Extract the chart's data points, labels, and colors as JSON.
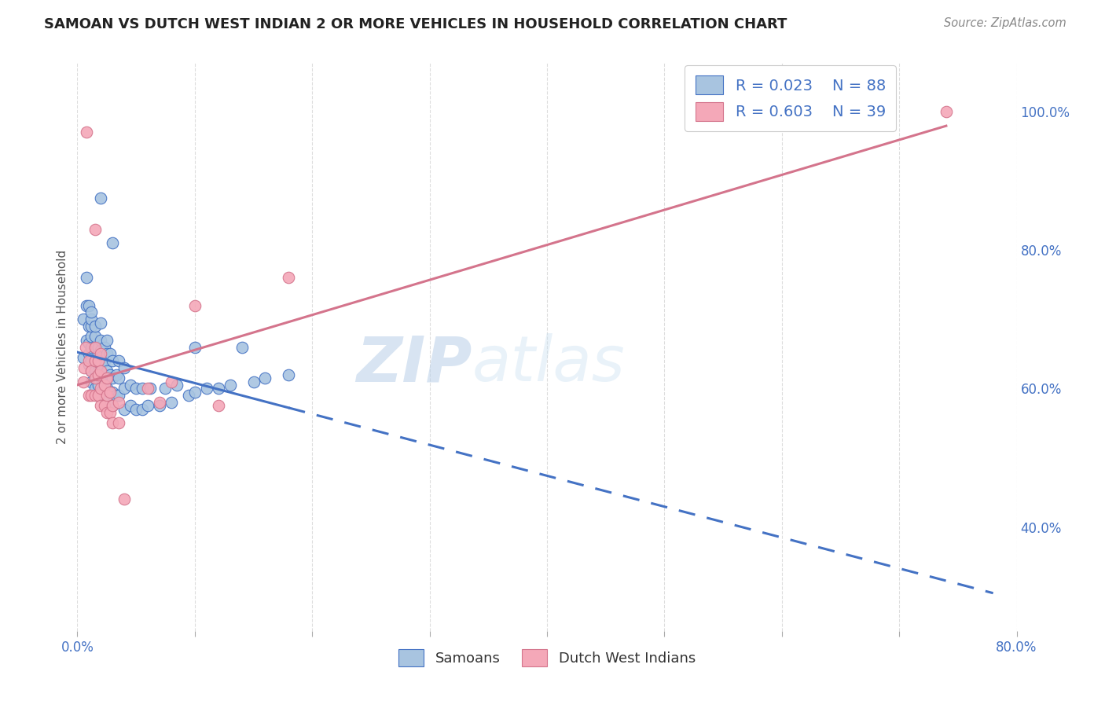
{
  "title": "SAMOAN VS DUTCH WEST INDIAN 2 OR MORE VEHICLES IN HOUSEHOLD CORRELATION CHART",
  "source": "Source: ZipAtlas.com",
  "ylabel": "2 or more Vehicles in Household",
  "xlim": [
    0.0,
    0.8
  ],
  "ylim": [
    0.25,
    1.07
  ],
  "samoan_color": "#a8c4e0",
  "dutch_color": "#f4a8b8",
  "samoan_line_color": "#4472c4",
  "dutch_line_color": "#d4748c",
  "watermark_zip": "ZIP",
  "watermark_atlas": "atlas",
  "background_color": "#ffffff",
  "grid_color": "#dddddd",
  "samoan_scatter_x": [
    0.005,
    0.005,
    0.008,
    0.008,
    0.008,
    0.01,
    0.01,
    0.01,
    0.01,
    0.01,
    0.012,
    0.012,
    0.012,
    0.012,
    0.012,
    0.012,
    0.012,
    0.012,
    0.015,
    0.015,
    0.015,
    0.015,
    0.015,
    0.015,
    0.015,
    0.018,
    0.018,
    0.018,
    0.018,
    0.018,
    0.018,
    0.02,
    0.02,
    0.02,
    0.02,
    0.02,
    0.02,
    0.023,
    0.023,
    0.023,
    0.023,
    0.023,
    0.025,
    0.025,
    0.025,
    0.025,
    0.028,
    0.028,
    0.028,
    0.03,
    0.03,
    0.03,
    0.03,
    0.033,
    0.033,
    0.035,
    0.035,
    0.035,
    0.04,
    0.04,
    0.04,
    0.045,
    0.045,
    0.05,
    0.05,
    0.055,
    0.055,
    0.06,
    0.062,
    0.07,
    0.075,
    0.08,
    0.085,
    0.095,
    0.1,
    0.11,
    0.12,
    0.13,
    0.15,
    0.16,
    0.18,
    0.02,
    0.03,
    0.1,
    0.14
  ],
  "samoan_scatter_y": [
    0.645,
    0.7,
    0.67,
    0.72,
    0.76,
    0.635,
    0.665,
    0.69,
    0.72,
    0.65,
    0.61,
    0.625,
    0.64,
    0.66,
    0.675,
    0.69,
    0.7,
    0.71,
    0.6,
    0.615,
    0.625,
    0.64,
    0.66,
    0.675,
    0.69,
    0.59,
    0.605,
    0.62,
    0.635,
    0.65,
    0.66,
    0.595,
    0.615,
    0.635,
    0.655,
    0.67,
    0.695,
    0.59,
    0.605,
    0.62,
    0.64,
    0.66,
    0.6,
    0.625,
    0.65,
    0.67,
    0.595,
    0.62,
    0.65,
    0.575,
    0.595,
    0.615,
    0.64,
    0.59,
    0.62,
    0.59,
    0.615,
    0.64,
    0.57,
    0.6,
    0.63,
    0.575,
    0.605,
    0.57,
    0.6,
    0.57,
    0.6,
    0.575,
    0.6,
    0.575,
    0.6,
    0.58,
    0.605,
    0.59,
    0.595,
    0.6,
    0.6,
    0.605,
    0.61,
    0.615,
    0.62,
    0.875,
    0.81,
    0.66,
    0.66
  ],
  "dutch_scatter_x": [
    0.005,
    0.006,
    0.007,
    0.008,
    0.01,
    0.01,
    0.012,
    0.012,
    0.015,
    0.015,
    0.015,
    0.015,
    0.015,
    0.018,
    0.018,
    0.018,
    0.02,
    0.02,
    0.02,
    0.02,
    0.023,
    0.023,
    0.025,
    0.025,
    0.025,
    0.028,
    0.028,
    0.03,
    0.03,
    0.035,
    0.035,
    0.04,
    0.06,
    0.07,
    0.08,
    0.1,
    0.12,
    0.18,
    0.74
  ],
  "dutch_scatter_y": [
    0.61,
    0.63,
    0.66,
    0.97,
    0.59,
    0.64,
    0.59,
    0.625,
    0.59,
    0.615,
    0.64,
    0.66,
    0.83,
    0.59,
    0.62,
    0.64,
    0.575,
    0.6,
    0.625,
    0.65,
    0.575,
    0.605,
    0.565,
    0.59,
    0.615,
    0.565,
    0.595,
    0.55,
    0.575,
    0.55,
    0.58,
    0.44,
    0.6,
    0.58,
    0.61,
    0.72,
    0.575,
    0.76,
    1.0
  ]
}
